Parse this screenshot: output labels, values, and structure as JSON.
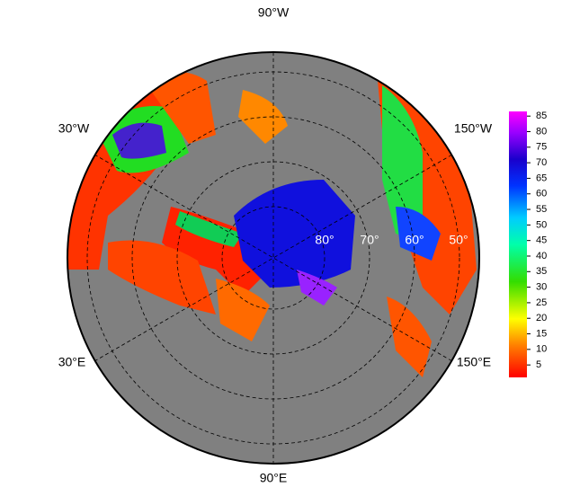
{
  "map": {
    "longitude_labels": [
      "90°W",
      "30°W",
      "150°W",
      "30°E",
      "150°E",
      "90°E"
    ],
    "latitude_labels": [
      "80°",
      "70°",
      "60°",
      "50°"
    ]
  },
  "colorbar": {
    "ylim": [
      1,
      86.5
    ],
    "ticks": [
      5,
      10,
      15,
      20,
      25,
      30,
      35,
      40,
      45,
      50,
      55,
      60,
      65,
      70,
      75,
      80,
      85
    ]
  }
}
